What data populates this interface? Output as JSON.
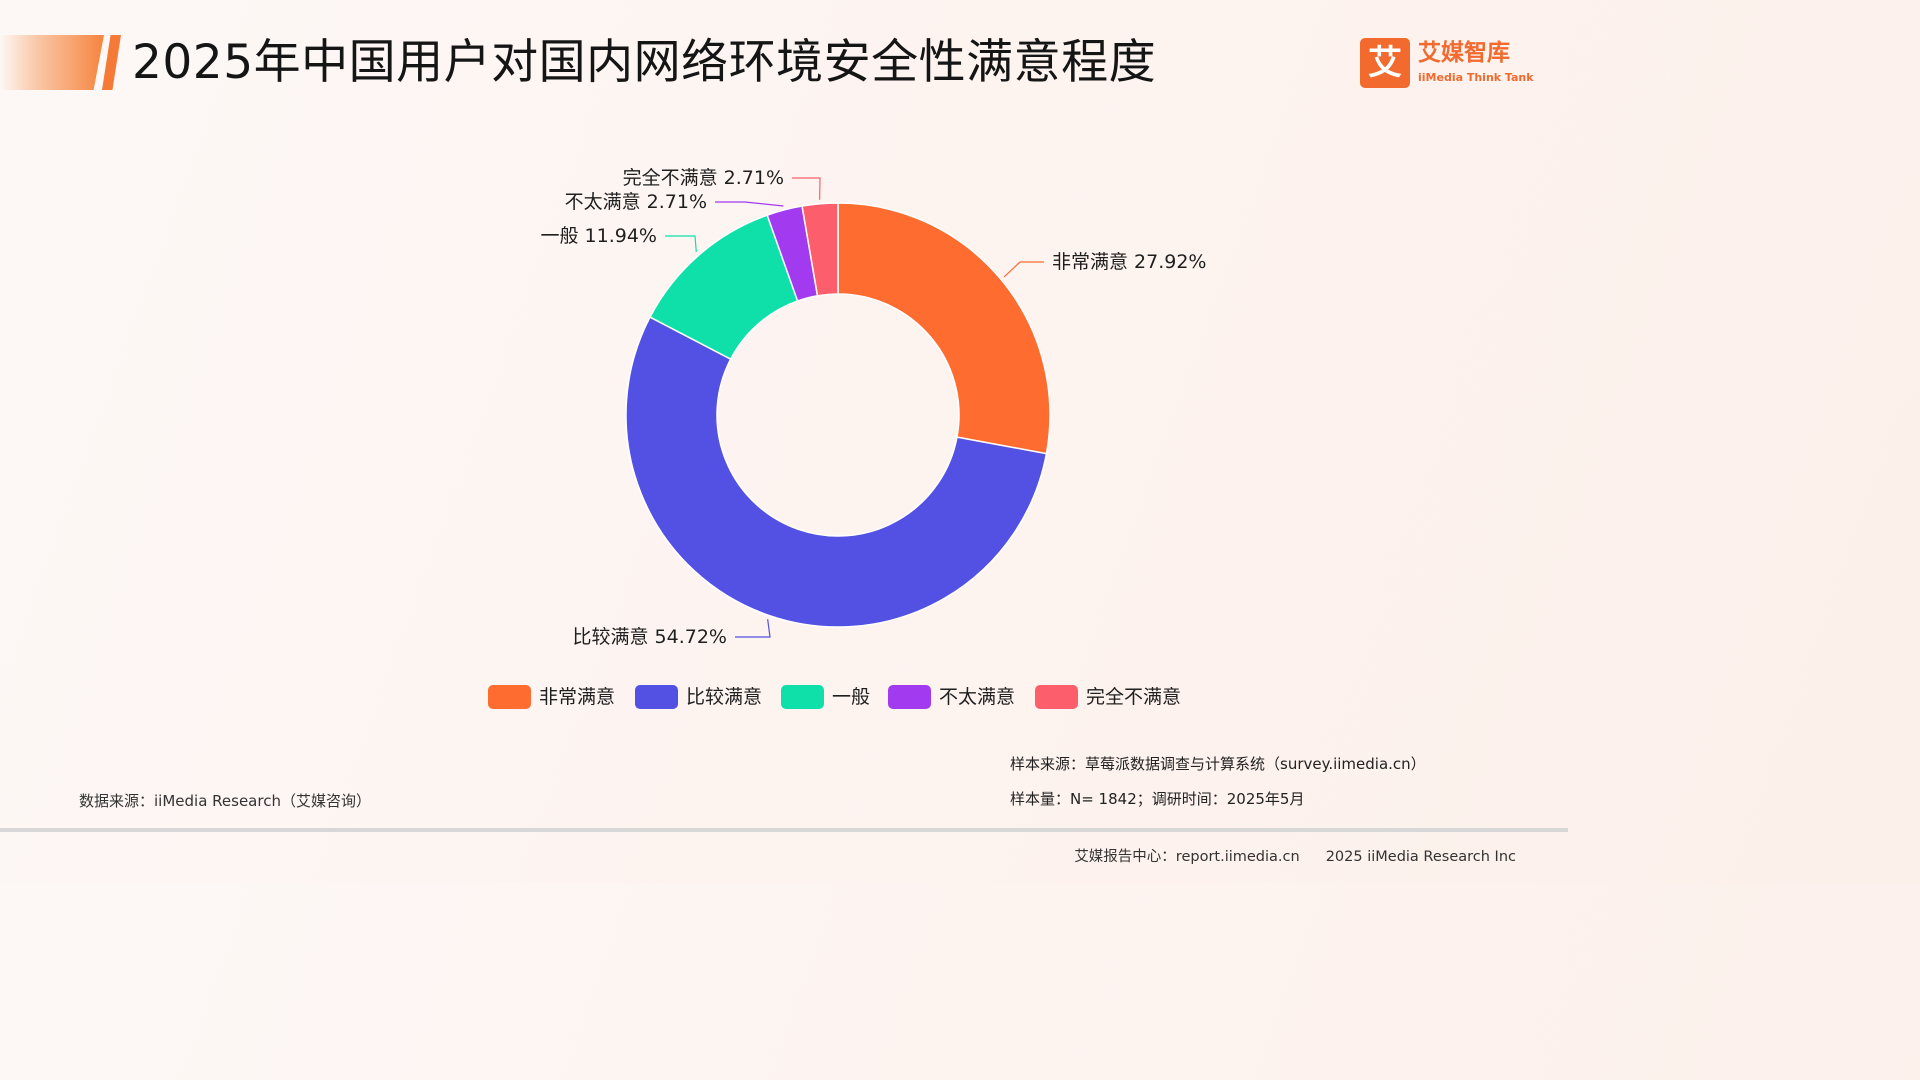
{
  "header": {
    "title": "2025年中国用户对国内网络环境安全性满意程度"
  },
  "logo": {
    "mark": "艾",
    "name_cn": "艾媒智库",
    "name_en": "iiMedia Think Tank"
  },
  "chart_data": {
    "type": "pie",
    "variant": "donut",
    "title": "2025年中国用户对国内网络环境安全性满意程度",
    "unit": "%",
    "slices": [
      {
        "label": "非常满意",
        "value": 27.92,
        "value_label": "27.92%",
        "color": "#ff6c30"
      },
      {
        "label": "比较满意",
        "value": 54.72,
        "value_label": "54.72%",
        "color": "#5350e4"
      },
      {
        "label": "一般",
        "value": 11.94,
        "value_label": "11.94%",
        "color": "#0fe0aa"
      },
      {
        "label": "不太满意",
        "value": 2.71,
        "value_label": "2.71%",
        "color": "#a23af0"
      },
      {
        "label": "完全不满意",
        "value": 2.71,
        "value_label": "2.71%",
        "color": "#fc5e6c"
      }
    ],
    "legend_position": "bottom"
  },
  "footer": {
    "data_source": "数据来源：iiMedia Research（艾媒咨询）",
    "sample_source": "样本来源：草莓派数据调查与计算系统（survey.iimedia.cn）",
    "sample_size": "样本量：N= 1842；调研时间：2025年5月",
    "report_center": "艾媒报告中心：report.iimedia.cn",
    "copyright": "2025 iiMedia Research Inc"
  }
}
